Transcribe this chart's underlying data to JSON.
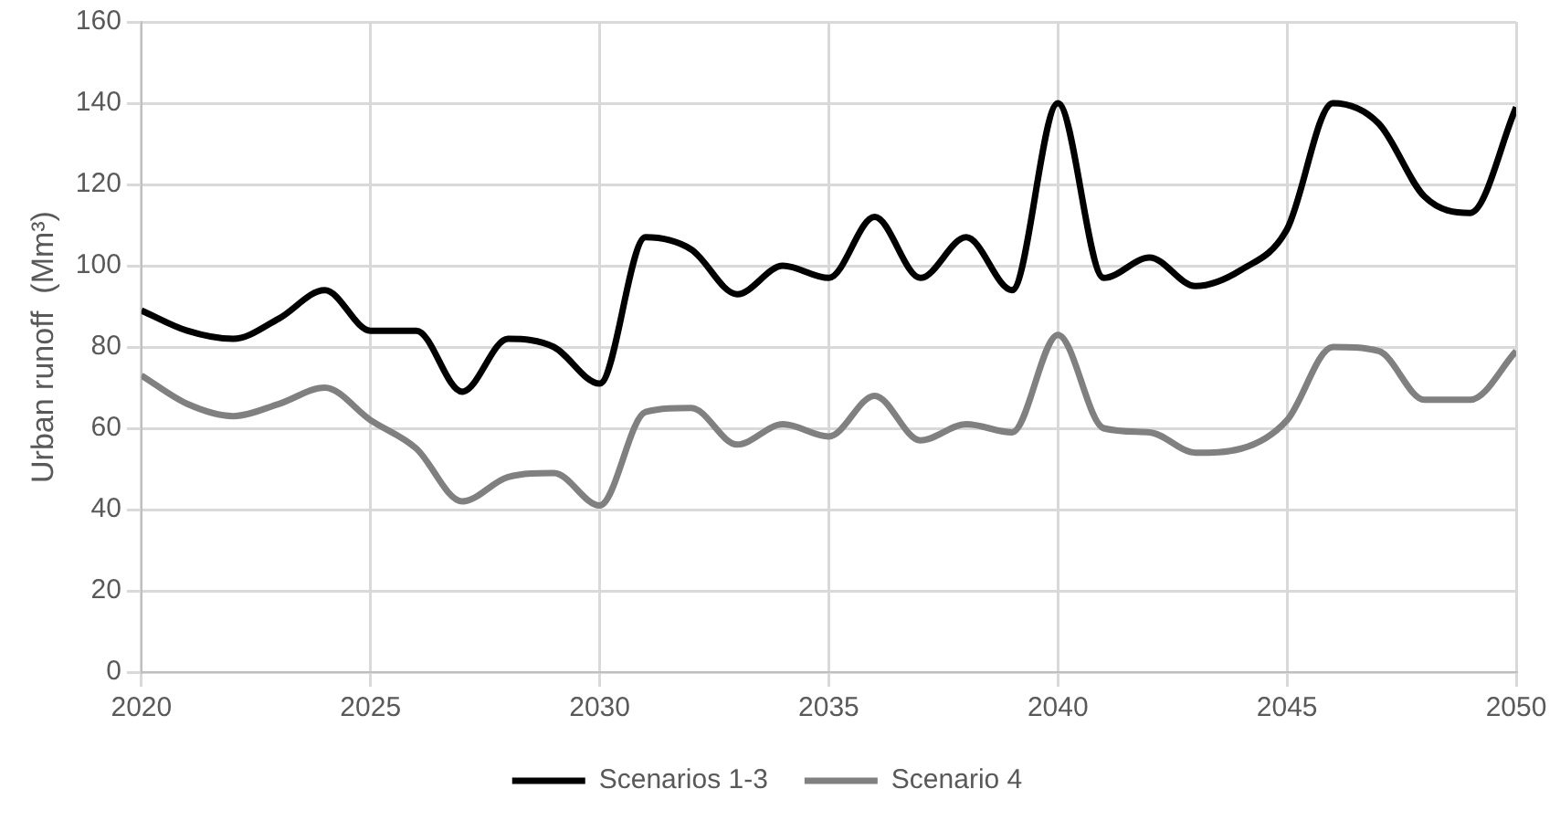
{
  "chart_data": {
    "type": "line",
    "ylabel": "Urban runoff  (Mm³)",
    "x": [
      2020,
      2021,
      2022,
      2023,
      2024,
      2025,
      2026,
      2027,
      2028,
      2029,
      2030,
      2031,
      2032,
      2033,
      2034,
      2035,
      2036,
      2037,
      2038,
      2039,
      2040,
      2041,
      2042,
      2043,
      2044,
      2045,
      2046,
      2047,
      2048,
      2049,
      2050
    ],
    "series": [
      {
        "name": "Scenarios 1-3",
        "color": "#000000",
        "values": [
          89,
          84,
          82,
          87,
          94,
          84,
          84,
          69,
          82,
          80,
          71,
          107,
          104,
          93,
          100,
          97,
          112,
          97,
          107,
          94,
          140,
          97,
          102,
          95,
          99,
          109,
          140,
          135,
          117,
          113,
          139
        ]
      },
      {
        "name": "Scenario 4",
        "color": "#808080",
        "values": [
          73,
          66,
          63,
          66,
          70,
          62,
          55,
          42,
          48,
          49,
          41,
          64,
          65,
          56,
          61,
          58,
          68,
          57,
          61,
          59,
          83,
          60,
          59,
          54,
          55,
          62,
          80,
          79,
          67,
          67,
          79
        ]
      }
    ],
    "xlim": [
      2020,
      2050
    ],
    "xticks": [
      2020,
      2025,
      2030,
      2035,
      2040,
      2045,
      2050
    ],
    "ylim": [
      0,
      160
    ],
    "yticks": [
      0,
      20,
      40,
      60,
      80,
      100,
      120,
      140,
      160
    ],
    "grid": true,
    "legend": "bottom",
    "marker": "none",
    "line_style": "solid"
  }
}
